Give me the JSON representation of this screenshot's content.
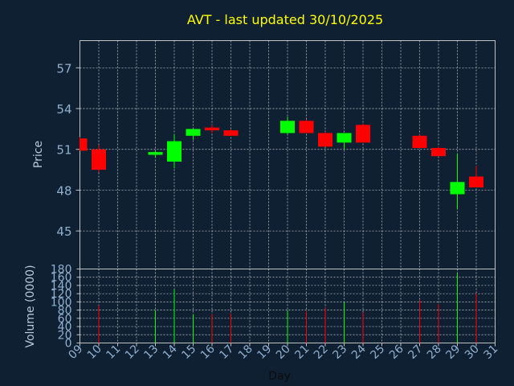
{
  "chart_data": {
    "type": "candlestick",
    "title": "AVT - last updated 30/10/2025",
    "ylabel": "Price",
    "vol_label": "Volume (0000)",
    "xlabel": "Day",
    "price_ylim": [
      42.2,
      59
    ],
    "price_ticks": [
      45,
      48,
      51,
      54,
      57
    ],
    "vol_ylim": [
      0,
      180
    ],
    "vol_ticks": [
      0,
      20,
      40,
      60,
      80,
      100,
      120,
      140,
      160,
      180
    ],
    "x_ticks": [
      "09",
      "10",
      "11",
      "12",
      "13",
      "14",
      "15",
      "16",
      "17",
      "18",
      "19",
      "20",
      "21",
      "22",
      "23",
      "24",
      "25",
      "26",
      "27",
      "28",
      "29",
      "30",
      "31"
    ],
    "colors": {
      "up": "#00ff00",
      "down": "#ff0000",
      "grid": "#ffffff",
      "background": "#0f2033",
      "plot_border": "#c0c0c0"
    },
    "candles": [
      {
        "day": "09",
        "open": 51.8,
        "high": 51.9,
        "low": 50.9,
        "close": 50.9,
        "volume": 0
      },
      {
        "day": "10",
        "open": 51.0,
        "high": 51.3,
        "low": 49.3,
        "close": 49.5,
        "volume": 92
      },
      {
        "day": "13",
        "open": 50.6,
        "high": 50.9,
        "low": 50.4,
        "close": 50.8,
        "volume": 80
      },
      {
        "day": "14",
        "open": 50.1,
        "high": 52.1,
        "low": 49.6,
        "close": 51.6,
        "volume": 130
      },
      {
        "day": "15",
        "open": 52.0,
        "high": 52.5,
        "low": 51.7,
        "close": 52.5,
        "volume": 70
      },
      {
        "day": "16",
        "open": 52.6,
        "high": 52.8,
        "low": 52.2,
        "close": 52.4,
        "volume": 70
      },
      {
        "day": "17",
        "open": 52.4,
        "high": 52.5,
        "low": 52.0,
        "close": 52.0,
        "volume": 72
      },
      {
        "day": "20",
        "open": 52.2,
        "high": 53.4,
        "low": 52.1,
        "close": 53.1,
        "volume": 80
      },
      {
        "day": "21",
        "open": 53.1,
        "high": 53.2,
        "low": 52.2,
        "close": 52.2,
        "volume": 78
      },
      {
        "day": "22",
        "open": 52.2,
        "high": 52.3,
        "low": 51.2,
        "close": 51.2,
        "volume": 85
      },
      {
        "day": "23",
        "open": 51.5,
        "high": 52.2,
        "low": 51.0,
        "close": 52.2,
        "volume": 100
      },
      {
        "day": "24",
        "open": 52.8,
        "high": 52.9,
        "low": 51.5,
        "close": 51.5,
        "volume": 75
      },
      {
        "day": "27",
        "open": 52.0,
        "high": 52.1,
        "low": 51.1,
        "close": 51.1,
        "volume": 105
      },
      {
        "day": "28",
        "open": 51.1,
        "high": 51.2,
        "low": 50.5,
        "close": 50.5,
        "volume": 95
      },
      {
        "day": "29",
        "open": 47.7,
        "high": 50.7,
        "low": 46.6,
        "close": 48.6,
        "volume": 170
      },
      {
        "day": "30",
        "open": 49.0,
        "high": 49.8,
        "low": 48.2,
        "close": 48.2,
        "volume": 120
      }
    ]
  }
}
